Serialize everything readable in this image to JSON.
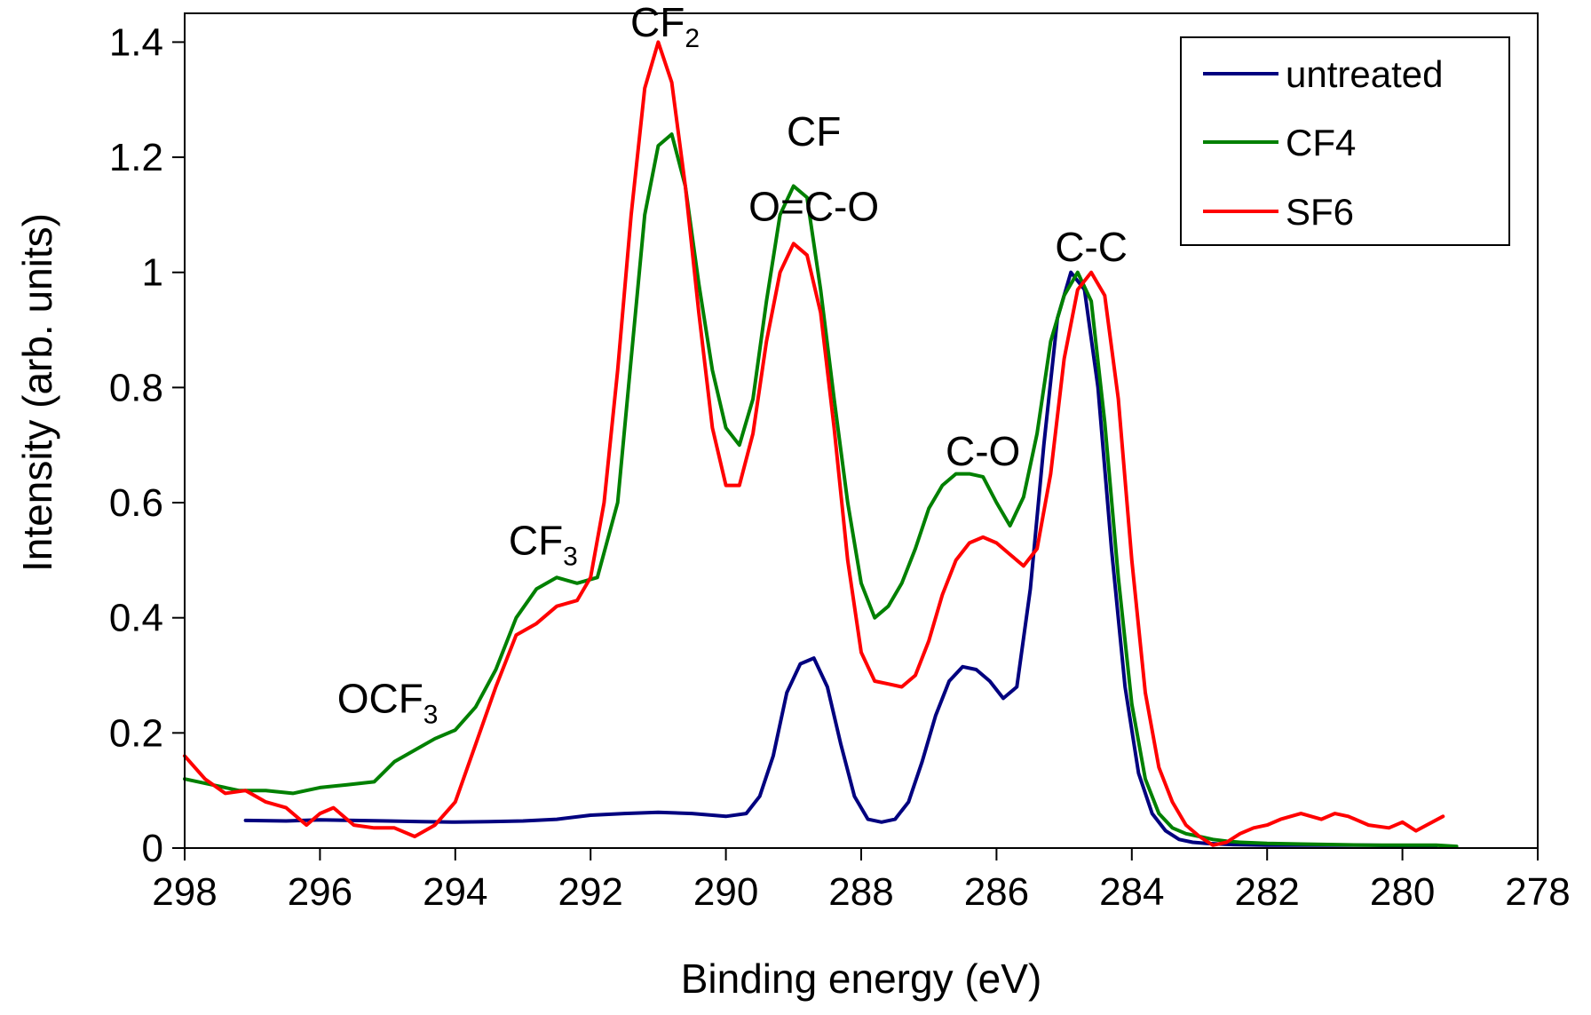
{
  "chart_data": {
    "type": "line",
    "xlabel": "Binding energy (eV)",
    "ylabel": "Intensity (arb. units)",
    "xlim": [
      298,
      278
    ],
    "x_reversed": true,
    "ylim": [
      0,
      1.45
    ],
    "x_ticks": [
      298,
      296,
      294,
      292,
      290,
      288,
      286,
      284,
      282,
      280,
      278
    ],
    "y_ticks": [
      0,
      0.2,
      0.4,
      0.6,
      0.8,
      1,
      1.2,
      1.4
    ],
    "y_tick_labels": [
      "0",
      "0.2",
      "0.4",
      "0.6",
      "0.8",
      "1",
      "1.2",
      "1.4"
    ],
    "legend_position": "top-right",
    "series": [
      {
        "name": "untreated",
        "color": "#00007F",
        "x": [
          297.1,
          296.5,
          296.0,
          295.5,
          295.0,
          294.5,
          294.0,
          293.5,
          293.0,
          292.5,
          292.0,
          291.5,
          291.0,
          290.5,
          290.0,
          289.7,
          289.5,
          289.3,
          289.1,
          288.9,
          288.7,
          288.5,
          288.3,
          288.1,
          287.9,
          287.7,
          287.5,
          287.3,
          287.1,
          286.9,
          286.7,
          286.5,
          286.3,
          286.1,
          285.9,
          285.7,
          285.5,
          285.3,
          285.1,
          284.9,
          284.7,
          284.5,
          284.3,
          284.1,
          283.9,
          283.7,
          283.5,
          283.3,
          283.1,
          282.9,
          282.7,
          282.5,
          282.0,
          281.5,
          281.0,
          280.5,
          280.0,
          279.5
        ],
        "values": [
          0.048,
          0.047,
          0.049,
          0.048,
          0.047,
          0.046,
          0.045,
          0.046,
          0.047,
          0.05,
          0.057,
          0.06,
          0.062,
          0.06,
          0.055,
          0.06,
          0.09,
          0.16,
          0.27,
          0.32,
          0.33,
          0.28,
          0.18,
          0.09,
          0.05,
          0.045,
          0.05,
          0.08,
          0.15,
          0.23,
          0.29,
          0.315,
          0.31,
          0.29,
          0.26,
          0.28,
          0.45,
          0.7,
          0.92,
          1.0,
          0.97,
          0.8,
          0.52,
          0.28,
          0.13,
          0.06,
          0.03,
          0.015,
          0.01,
          0.008,
          0.007,
          0.006,
          0.005,
          0.005,
          0.005,
          0.005,
          0.004,
          0.004
        ]
      },
      {
        "name": "CF4",
        "color": "#008000",
        "x": [
          298.0,
          297.6,
          297.2,
          296.8,
          296.4,
          296.0,
          295.6,
          295.2,
          294.9,
          294.6,
          294.3,
          294.0,
          293.7,
          293.4,
          293.1,
          292.8,
          292.5,
          292.2,
          291.9,
          291.6,
          291.4,
          291.2,
          291.0,
          290.8,
          290.6,
          290.4,
          290.2,
          290.0,
          289.8,
          289.6,
          289.4,
          289.2,
          289.0,
          288.8,
          288.6,
          288.4,
          288.2,
          288.0,
          287.8,
          287.6,
          287.4,
          287.2,
          287.0,
          286.8,
          286.6,
          286.4,
          286.2,
          286.0,
          285.8,
          285.6,
          285.4,
          285.2,
          285.0,
          284.8,
          284.6,
          284.4,
          284.2,
          284.0,
          283.8,
          283.6,
          283.4,
          283.2,
          283.0,
          282.8,
          282.6,
          282.4,
          282.0,
          281.5,
          281.0,
          280.5,
          280.0,
          279.5,
          279.2
        ],
        "values": [
          0.12,
          0.11,
          0.1,
          0.1,
          0.095,
          0.105,
          0.11,
          0.115,
          0.15,
          0.17,
          0.19,
          0.205,
          0.245,
          0.31,
          0.4,
          0.45,
          0.47,
          0.46,
          0.47,
          0.6,
          0.85,
          1.1,
          1.22,
          1.24,
          1.15,
          0.98,
          0.83,
          0.73,
          0.7,
          0.78,
          0.95,
          1.1,
          1.15,
          1.13,
          0.97,
          0.78,
          0.6,
          0.46,
          0.4,
          0.42,
          0.46,
          0.52,
          0.59,
          0.63,
          0.65,
          0.65,
          0.645,
          0.6,
          0.56,
          0.61,
          0.72,
          0.88,
          0.96,
          1.0,
          0.95,
          0.74,
          0.47,
          0.25,
          0.12,
          0.06,
          0.035,
          0.025,
          0.02,
          0.015,
          0.012,
          0.01,
          0.008,
          0.007,
          0.006,
          0.005,
          0.005,
          0.005,
          0.003
        ]
      },
      {
        "name": "SF6",
        "color": "#FF0000",
        "x": [
          298.0,
          297.7,
          297.4,
          297.1,
          296.8,
          296.5,
          296.2,
          296.0,
          295.8,
          295.5,
          295.2,
          294.9,
          294.6,
          294.3,
          294.0,
          293.7,
          293.4,
          293.1,
          292.8,
          292.5,
          292.2,
          292.0,
          291.8,
          291.6,
          291.4,
          291.2,
          291.0,
          290.8,
          290.6,
          290.4,
          290.2,
          290.0,
          289.8,
          289.6,
          289.4,
          289.2,
          289.0,
          288.8,
          288.6,
          288.4,
          288.2,
          288.0,
          287.8,
          287.6,
          287.4,
          287.2,
          287.0,
          286.8,
          286.6,
          286.4,
          286.2,
          286.0,
          285.8,
          285.6,
          285.4,
          285.2,
          285.0,
          284.8,
          284.6,
          284.4,
          284.2,
          284.0,
          283.8,
          283.6,
          283.4,
          283.2,
          283.0,
          282.8,
          282.6,
          282.4,
          282.2,
          282.0,
          281.8,
          281.5,
          281.2,
          281.0,
          280.8,
          280.5,
          280.2,
          280.0,
          279.8,
          279.4
        ],
        "values": [
          0.16,
          0.12,
          0.095,
          0.1,
          0.08,
          0.07,
          0.04,
          0.06,
          0.07,
          0.04,
          0.035,
          0.035,
          0.02,
          0.04,
          0.08,
          0.18,
          0.28,
          0.37,
          0.39,
          0.42,
          0.43,
          0.47,
          0.6,
          0.83,
          1.1,
          1.32,
          1.4,
          1.33,
          1.15,
          0.93,
          0.73,
          0.63,
          0.63,
          0.72,
          0.88,
          1.0,
          1.05,
          1.03,
          0.93,
          0.73,
          0.5,
          0.34,
          0.29,
          0.285,
          0.28,
          0.3,
          0.36,
          0.44,
          0.5,
          0.53,
          0.54,
          0.53,
          0.51,
          0.49,
          0.52,
          0.65,
          0.85,
          0.97,
          1.0,
          0.96,
          0.78,
          0.5,
          0.27,
          0.14,
          0.08,
          0.04,
          0.02,
          0.005,
          0.01,
          0.025,
          0.035,
          0.04,
          0.05,
          0.06,
          0.05,
          0.06,
          0.055,
          0.04,
          0.035,
          0.045,
          0.03,
          0.055
        ]
      }
    ],
    "annotations": [
      {
        "id": "cf2",
        "main": "CF",
        "sub": "2",
        "x": 290.9,
        "y": 1.41
      },
      {
        "id": "cf",
        "main": "CF",
        "sub": "",
        "x": 288.7,
        "y": 1.22
      },
      {
        "id": "ococ",
        "main": "O=C-O",
        "sub": "",
        "x": 288.7,
        "y": 1.09
      },
      {
        "id": "cc",
        "main": "C-C",
        "sub": "",
        "x": 284.6,
        "y": 1.02
      },
      {
        "id": "co",
        "main": "C-O",
        "sub": "",
        "x": 286.2,
        "y": 0.665
      },
      {
        "id": "cf3",
        "main": "CF",
        "sub": "3",
        "x": 292.7,
        "y": 0.51
      },
      {
        "id": "ocf3",
        "main": "OCF",
        "sub": "3",
        "x": 295.0,
        "y": 0.235
      }
    ]
  }
}
